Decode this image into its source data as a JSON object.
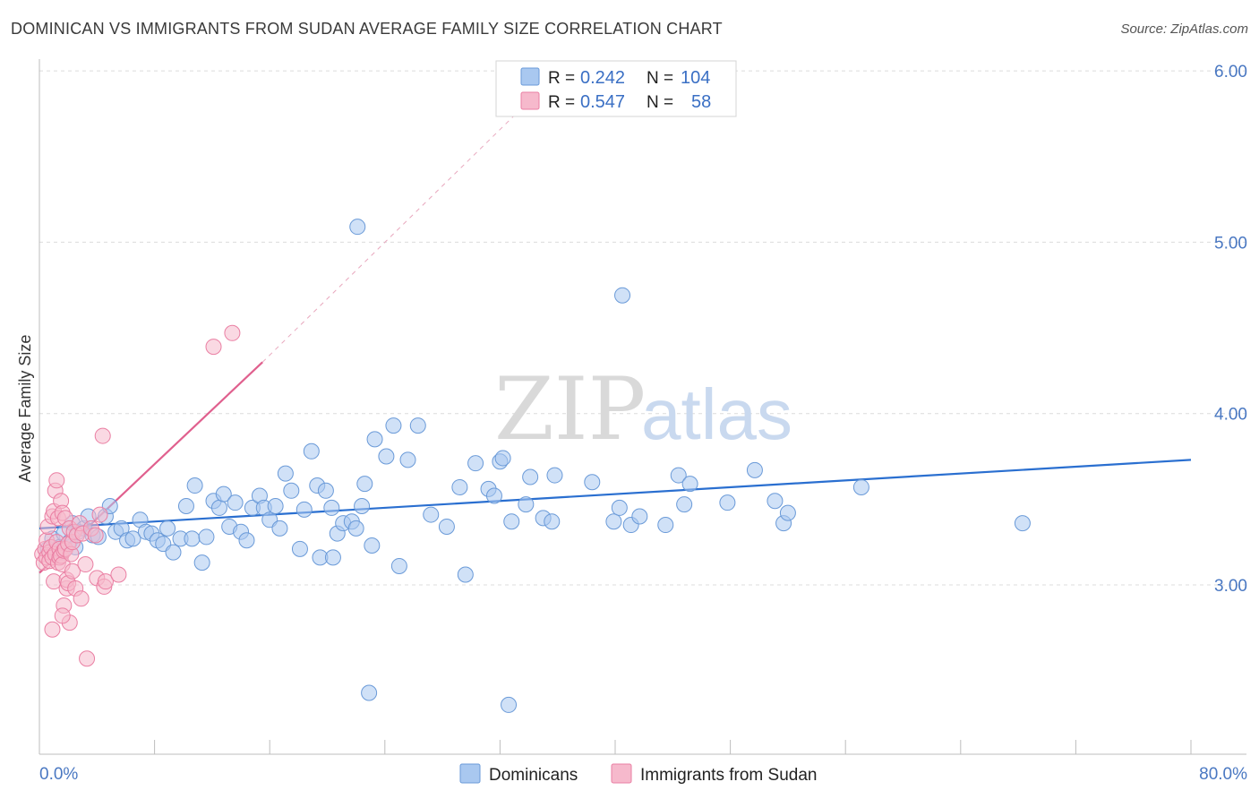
{
  "header": {
    "title": "DOMINICAN VS IMMIGRANTS FROM SUDAN AVERAGE FAMILY SIZE CORRELATION CHART",
    "source": "Source: ZipAtlas.com"
  },
  "watermark": {
    "zip": "ZIP",
    "atlas": "atlas"
  },
  "legend": {
    "rows": [
      {
        "r_label": "R =",
        "r_value": "0.242",
        "n_label": "N =",
        "n_value": "104",
        "color": "#a9c8f0"
      },
      {
        "r_label": "R =",
        "r_value": "0.547",
        "n_label": "N =",
        "n_value": "58",
        "color": "#f6b9cc"
      }
    ]
  },
  "bottom_legend": [
    {
      "label": "Dominicans",
      "color": "#a9c8f0"
    },
    {
      "label": "Immigrants from Sudan",
      "color": "#f6b9cc"
    }
  ],
  "chart_data": {
    "type": "scatter",
    "title": "DOMINICAN VS IMMIGRANTS FROM SUDAN AVERAGE FAMILY SIZE CORRELATION CHART",
    "xlabel": "",
    "ylabel": "Average Family Size",
    "xlim": [
      0,
      80
    ],
    "ylim": [
      2.0,
      6.1
    ],
    "x_tick_labels": [
      "0.0%",
      "80.0%"
    ],
    "y_ticks": [
      3.0,
      4.0,
      5.0,
      6.0
    ],
    "y_tick_labels": [
      "3.00",
      "4.00",
      "5.00",
      "6.00"
    ],
    "grid": true,
    "legend_position": "top-center",
    "colors": {
      "blue_fill": "#a9c8f0",
      "blue_stroke": "#6a9ad8",
      "blue_line": "#2a6fd0",
      "pink_fill": "#f6b9cc",
      "pink_stroke": "#ea7fa3",
      "pink_line": "#e0608e"
    },
    "series": [
      {
        "name": "Dominicans",
        "trend": {
          "x": [
            0,
            80
          ],
          "y": [
            3.33,
            3.73
          ]
        },
        "points": [
          [
            0.6,
            3.21
          ],
          [
            0.9,
            3.27
          ],
          [
            1.1,
            3.18
          ],
          [
            1.4,
            3.22
          ],
          [
            1.7,
            3.3
          ],
          [
            2.1,
            3.25
          ],
          [
            2.3,
            3.36
          ],
          [
            2.7,
            3.31
          ],
          [
            3.1,
            3.33
          ],
          [
            3.4,
            3.4
          ],
          [
            3.7,
            3.29
          ],
          [
            4.1,
            3.28
          ],
          [
            4.6,
            3.4
          ],
          [
            4.9,
            3.46
          ],
          [
            5.3,
            3.31
          ],
          [
            5.7,
            3.33
          ],
          [
            6.1,
            3.26
          ],
          [
            6.5,
            3.27
          ],
          [
            7.0,
            3.38
          ],
          [
            7.4,
            3.31
          ],
          [
            7.8,
            3.3
          ],
          [
            8.2,
            3.26
          ],
          [
            8.6,
            3.24
          ],
          [
            8.9,
            3.33
          ],
          [
            9.3,
            3.19
          ],
          [
            9.8,
            3.27
          ],
          [
            10.2,
            3.46
          ],
          [
            10.6,
            3.27
          ],
          [
            10.8,
            3.58
          ],
          [
            11.3,
            3.13
          ],
          [
            11.6,
            3.28
          ],
          [
            12.1,
            3.49
          ],
          [
            12.5,
            3.45
          ],
          [
            12.8,
            3.53
          ],
          [
            13.2,
            3.34
          ],
          [
            13.6,
            3.48
          ],
          [
            14.0,
            3.31
          ],
          [
            14.4,
            3.26
          ],
          [
            14.8,
            3.45
          ],
          [
            15.3,
            3.52
          ],
          [
            15.6,
            3.45
          ],
          [
            16.0,
            3.38
          ],
          [
            16.4,
            3.46
          ],
          [
            16.7,
            3.33
          ],
          [
            17.1,
            3.65
          ],
          [
            17.5,
            3.55
          ],
          [
            18.1,
            3.21
          ],
          [
            18.4,
            3.44
          ],
          [
            18.9,
            3.78
          ],
          [
            19.3,
            3.58
          ],
          [
            19.5,
            3.16
          ],
          [
            19.9,
            3.55
          ],
          [
            20.3,
            3.45
          ],
          [
            20.4,
            3.16
          ],
          [
            20.7,
            3.3
          ],
          [
            21.1,
            3.36
          ],
          [
            21.7,
            3.37
          ],
          [
            22.0,
            3.33
          ],
          [
            22.4,
            3.46
          ],
          [
            22.6,
            3.59
          ],
          [
            23.1,
            3.23
          ],
          [
            22.1,
            5.09
          ],
          [
            23.3,
            3.85
          ],
          [
            24.1,
            3.75
          ],
          [
            24.6,
            3.93
          ],
          [
            25.0,
            3.11
          ],
          [
            25.6,
            3.73
          ],
          [
            26.3,
            3.93
          ],
          [
            27.2,
            3.41
          ],
          [
            28.3,
            3.34
          ],
          [
            29.2,
            3.57
          ],
          [
            29.6,
            3.06
          ],
          [
            30.3,
            3.71
          ],
          [
            31.2,
            3.56
          ],
          [
            31.6,
            3.52
          ],
          [
            32.0,
            3.72
          ],
          [
            32.2,
            3.74
          ],
          [
            32.8,
            3.37
          ],
          [
            33.8,
            3.47
          ],
          [
            34.1,
            3.63
          ],
          [
            35.0,
            3.39
          ],
          [
            35.6,
            3.37
          ],
          [
            35.8,
            3.64
          ],
          [
            38.4,
            3.6
          ],
          [
            39.9,
            3.37
          ],
          [
            40.3,
            3.45
          ],
          [
            40.5,
            4.69
          ],
          [
            41.1,
            3.35
          ],
          [
            41.7,
            3.4
          ],
          [
            43.5,
            3.35
          ],
          [
            44.4,
            3.64
          ],
          [
            44.8,
            3.47
          ],
          [
            45.2,
            3.59
          ],
          [
            47.8,
            3.48
          ],
          [
            49.7,
            3.67
          ],
          [
            51.1,
            3.49
          ],
          [
            51.7,
            3.36
          ],
          [
            52.0,
            3.42
          ],
          [
            57.1,
            3.57
          ],
          [
            68.3,
            3.36
          ],
          [
            22.9,
            2.37
          ],
          [
            32.6,
            2.3
          ],
          [
            1.6,
            3.19
          ],
          [
            2.5,
            3.22
          ]
        ]
      },
      {
        "name": "Immigrants from Sudan",
        "trend": {
          "x": [
            0,
            15.5
          ],
          "y": [
            3.07,
            4.3
          ],
          "extension": {
            "x": [
              15.5,
              33.0
            ],
            "y": [
              4.3,
              5.74
            ]
          }
        },
        "points": [
          [
            0.2,
            3.18
          ],
          [
            0.3,
            3.13
          ],
          [
            0.4,
            3.21
          ],
          [
            0.5,
            3.26
          ],
          [
            0.5,
            3.16
          ],
          [
            0.6,
            3.34
          ],
          [
            0.7,
            3.19
          ],
          [
            0.7,
            3.14
          ],
          [
            0.8,
            3.22
          ],
          [
            0.9,
            3.4
          ],
          [
            0.9,
            3.16
          ],
          [
            1.0,
            3.43
          ],
          [
            1.0,
            3.02
          ],
          [
            1.1,
            3.55
          ],
          [
            1.1,
            3.18
          ],
          [
            1.2,
            3.61
          ],
          [
            1.2,
            3.25
          ],
          [
            1.3,
            3.39
          ],
          [
            1.3,
            3.13
          ],
          [
            1.4,
            3.21
          ],
          [
            1.4,
            3.16
          ],
          [
            1.5,
            3.49
          ],
          [
            1.5,
            3.17
          ],
          [
            1.6,
            3.42
          ],
          [
            1.6,
            3.12
          ],
          [
            1.7,
            3.2
          ],
          [
            1.7,
            2.88
          ],
          [
            1.8,
            3.39
          ],
          [
            1.8,
            3.21
          ],
          [
            1.9,
            2.98
          ],
          [
            1.9,
            3.03
          ],
          [
            2.0,
            3.24
          ],
          [
            2.0,
            3.01
          ],
          [
            2.1,
            2.78
          ],
          [
            2.1,
            3.33
          ],
          [
            2.2,
            3.18
          ],
          [
            2.3,
            3.25
          ],
          [
            2.3,
            3.08
          ],
          [
            2.4,
            3.31
          ],
          [
            2.5,
            2.98
          ],
          [
            2.6,
            3.29
          ],
          [
            2.8,
            3.36
          ],
          [
            2.9,
            2.92
          ],
          [
            3.0,
            3.3
          ],
          [
            3.2,
            3.12
          ],
          [
            3.3,
            2.57
          ],
          [
            3.6,
            3.33
          ],
          [
            4.0,
            3.04
          ],
          [
            4.2,
            3.41
          ],
          [
            4.4,
            3.87
          ],
          [
            4.5,
            2.99
          ],
          [
            4.6,
            3.02
          ],
          [
            5.5,
            3.06
          ],
          [
            12.1,
            4.39
          ],
          [
            13.4,
            4.47
          ],
          [
            0.9,
            2.74
          ],
          [
            1.6,
            2.82
          ],
          [
            3.9,
            3.29
          ]
        ]
      }
    ]
  }
}
